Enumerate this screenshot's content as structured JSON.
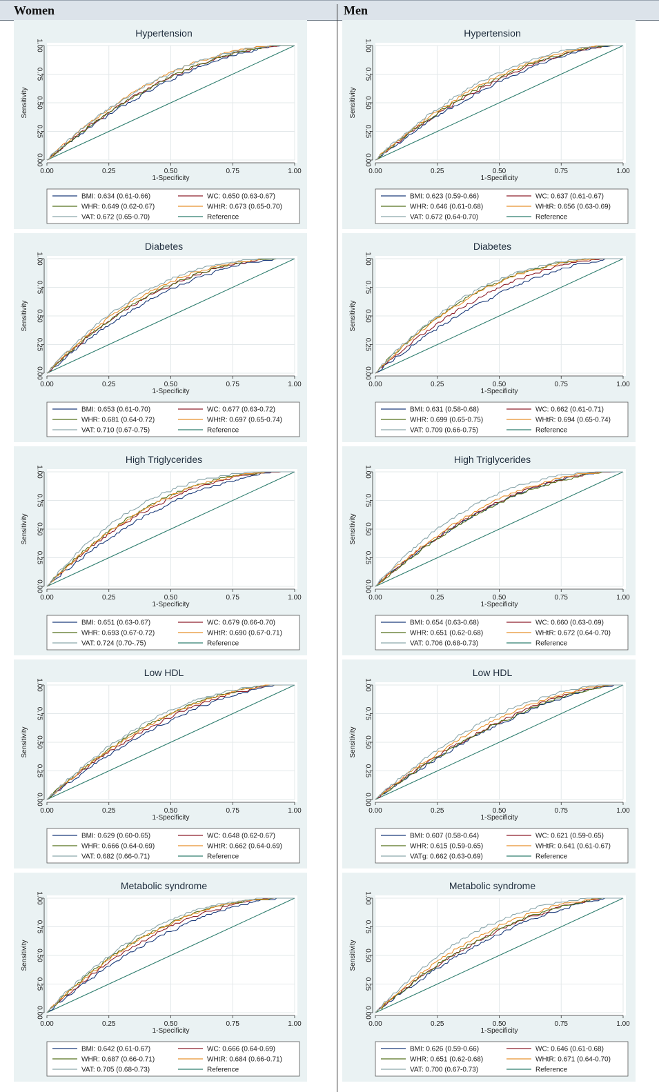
{
  "header": {
    "women": "Women",
    "men": "Men"
  },
  "colors": {
    "BMI": "#1a3a7a",
    "WC": "#8e1f2a",
    "WHR": "#55711c",
    "WHtR": "#e8902c",
    "VAT": "#8aa6ab",
    "Reference": "#2e7d6e"
  },
  "chart_data": [
    {
      "type": "line",
      "sex": "Women",
      "title": "Hypertension",
      "xlabel": "1-Specificity",
      "ylabel": "Sensitivity",
      "xlim": [
        0,
        1
      ],
      "ylim": [
        0,
        1
      ],
      "xticks": [
        "0.00",
        "0.25",
        "0.50",
        "0.75",
        "1.00"
      ],
      "yticks": [
        "0.00",
        "0.25",
        "0.50",
        "0.75",
        "1.00"
      ],
      "series": [
        {
          "key": "BMI",
          "legend": "BMI: 0.634 (0.61-0.66)",
          "auc": 0.634
        },
        {
          "key": "WC",
          "legend": "WC: 0.650 (0.63-0.67)",
          "auc": 0.65
        },
        {
          "key": "WHR",
          "legend": "WHR: 0.649 (0.62-0.67)",
          "auc": 0.649
        },
        {
          "key": "WHtR",
          "legend": "WHtR: 0.673 (0.65-0.70)",
          "auc": 0.673
        },
        {
          "key": "VAT",
          "legend": "VAT: 0.672 (0.65-0.70)",
          "auc": 0.672
        },
        {
          "key": "Reference",
          "legend": "Reference",
          "auc": 0.5
        }
      ]
    },
    {
      "type": "line",
      "sex": "Men",
      "title": "Hypertension",
      "xlabel": "1-Specificity",
      "ylabel": "Sensitivity",
      "xlim": [
        0,
        1
      ],
      "ylim": [
        0,
        1
      ],
      "xticks": [
        "0.00",
        "0.25",
        "0.50",
        "0.75",
        "1.00"
      ],
      "yticks": [
        "0.00",
        "0.25",
        "0.50",
        "0.75",
        "1.00"
      ],
      "series": [
        {
          "key": "BMI",
          "legend": "BMI: 0.623 (0.59-0.66)",
          "auc": 0.623
        },
        {
          "key": "WC",
          "legend": "WC: 0.637 (0.61-0.67)",
          "auc": 0.637
        },
        {
          "key": "WHR",
          "legend": "WHR: 0.646 (0.61-0.68)",
          "auc": 0.646
        },
        {
          "key": "WHtR",
          "legend": "WHtR: 0.656 (0.63-0.69)",
          "auc": 0.656
        },
        {
          "key": "VAT",
          "legend": "VAT: 0.672 (0.64-0.70)",
          "auc": 0.672
        },
        {
          "key": "Reference",
          "legend": "Reference",
          "auc": 0.5
        }
      ]
    },
    {
      "type": "line",
      "sex": "Women",
      "title": "Diabetes",
      "xlabel": "1-Specificity",
      "ylabel": "Sensitivity",
      "xlim": [
        0,
        1
      ],
      "ylim": [
        0,
        1
      ],
      "xticks": [
        "0.00",
        "0.25",
        "0.50",
        "0.75",
        "1.00"
      ],
      "yticks": [
        "0.00",
        "0.25",
        "0.50",
        "0.75",
        "1.00"
      ],
      "series": [
        {
          "key": "BMI",
          "legend": "BMI: 0.653 (0.61-0.70)",
          "auc": 0.653
        },
        {
          "key": "WC",
          "legend": "WC: 0.677 (0.63-0.72)",
          "auc": 0.677
        },
        {
          "key": "WHR",
          "legend": "WHR: 0.681 (0.64-0.72)",
          "auc": 0.681
        },
        {
          "key": "WHtR",
          "legend": "WHtR: 0.697 (0.65-0.74)",
          "auc": 0.697
        },
        {
          "key": "VAT",
          "legend": "VAT: 0.710 (0.67-0.75)",
          "auc": 0.71
        },
        {
          "key": "Reference",
          "legend": "Reference",
          "auc": 0.5
        }
      ]
    },
    {
      "type": "line",
      "sex": "Men",
      "title": "Diabetes",
      "xlabel": "1-Specificity",
      "ylabel": "Sensitivity",
      "xlim": [
        0,
        1
      ],
      "ylim": [
        0,
        1
      ],
      "xticks": [
        "0.00",
        "0.25",
        "0.50",
        "0.75",
        "1.00"
      ],
      "yticks": [
        "0.00",
        "0.25",
        "0.50",
        "0.75",
        "1.00"
      ],
      "series": [
        {
          "key": "BMI",
          "legend": "BMI: 0.631 (0.58-0.68)",
          "auc": 0.631
        },
        {
          "key": "WC",
          "legend": "WC: 0.662 (0.61-0.71)",
          "auc": 0.662
        },
        {
          "key": "WHR",
          "legend": "WHR: 0.699 (0.65-0.75)",
          "auc": 0.699
        },
        {
          "key": "WHtR",
          "legend": "WHtR: 0.694 (0.65-0.74)",
          "auc": 0.694
        },
        {
          "key": "VAT",
          "legend": "VAT: 0.709 (0.66-0.75)",
          "auc": 0.709
        },
        {
          "key": "Reference",
          "legend": "Reference",
          "auc": 0.5
        }
      ]
    },
    {
      "type": "line",
      "sex": "Women",
      "title": "High Triglycerides",
      "xlabel": "1-Specificity",
      "ylabel": "Sensitivity",
      "xlim": [
        0,
        1
      ],
      "ylim": [
        0,
        1
      ],
      "xticks": [
        "0.00",
        "0.25",
        "0.50",
        "0.75",
        "1.00"
      ],
      "yticks": [
        "0.00",
        "0.25",
        "0.50",
        "0.75",
        "1.00"
      ],
      "series": [
        {
          "key": "BMI",
          "legend": "BMI: 0.651 (0.63-0.67)",
          "auc": 0.651
        },
        {
          "key": "WC",
          "legend": "WC: 0.679 (0.66-0.70)",
          "auc": 0.679
        },
        {
          "key": "WHR",
          "legend": "WHR: 0.693 (0.67-0.72)",
          "auc": 0.693
        },
        {
          "key": "WHtR",
          "legend": "WHtR: 0.690 (0.67-0.71)",
          "auc": 0.69
        },
        {
          "key": "VAT",
          "legend": "VAT: 0.724 (0.70-.75)",
          "auc": 0.724
        },
        {
          "key": "Reference",
          "legend": "Reference",
          "auc": 0.5
        }
      ]
    },
    {
      "type": "line",
      "sex": "Men",
      "title": "High Triglycerides",
      "xlabel": "1-Specificity",
      "ylabel": "Sensitivity",
      "xlim": [
        0,
        1
      ],
      "ylim": [
        0,
        1
      ],
      "xticks": [
        "0.00",
        "0.25",
        "0.50",
        "0.75",
        "1.00"
      ],
      "yticks": [
        "0.00",
        "0.25",
        "0.50",
        "0.75",
        "1.00"
      ],
      "series": [
        {
          "key": "BMI",
          "legend": "BMI: 0.654 (0.63-0.68)",
          "auc": 0.654
        },
        {
          "key": "WC",
          "legend": "WC: 0.660 (0.63-0.69)",
          "auc": 0.66
        },
        {
          "key": "WHR",
          "legend": "WHR: 0.651 (0.62-0.68)",
          "auc": 0.651
        },
        {
          "key": "WHtR",
          "legend": "WHtR: 0.672 (0.64-0.70)",
          "auc": 0.672
        },
        {
          "key": "VAT",
          "legend": "VAT: 0.706 (0.68-0.73)",
          "auc": 0.706
        },
        {
          "key": "Reference",
          "legend": "Reference",
          "auc": 0.5
        }
      ]
    },
    {
      "type": "line",
      "sex": "Women",
      "title": "Low HDL",
      "xlabel": "1-Specificity",
      "ylabel": "Sensitivity",
      "xlim": [
        0,
        1
      ],
      "ylim": [
        0,
        1
      ],
      "xticks": [
        "0.00",
        "0.25",
        "0.50",
        "0.75",
        "1.00"
      ],
      "yticks": [
        "0.00",
        "0.25",
        "0.50",
        "0.75",
        "1.00"
      ],
      "series": [
        {
          "key": "BMI",
          "legend": "BMI: 0.629 (0.60-0.65)",
          "auc": 0.629
        },
        {
          "key": "WC",
          "legend": "WC: 0.648 (0.62-0.67)",
          "auc": 0.648
        },
        {
          "key": "WHR",
          "legend": "WHR: 0.666 (0.64-0.69)",
          "auc": 0.666
        },
        {
          "key": "WHtR",
          "legend": "WHtR: 0.662 (0.64-0.69)",
          "auc": 0.662
        },
        {
          "key": "VAT",
          "legend": "VAT: 0.682 (0.66-0.71)",
          "auc": 0.682
        },
        {
          "key": "Reference",
          "legend": "Reference",
          "auc": 0.5
        }
      ]
    },
    {
      "type": "line",
      "sex": "Men",
      "title": "Low HDL",
      "xlabel": "1-Specificity",
      "ylabel": "Sensitivity",
      "xlim": [
        0,
        1
      ],
      "ylim": [
        0,
        1
      ],
      "xticks": [
        "0.00",
        "0.25",
        "0.50",
        "0.75",
        "1.00"
      ],
      "yticks": [
        "0.00",
        "0.25",
        "0.50",
        "0.75",
        "1.00"
      ],
      "series": [
        {
          "key": "BMI",
          "legend": "BMI: 0.607 (0.58-0.64)",
          "auc": 0.607
        },
        {
          "key": "WC",
          "legend": "WC: 0.621 (0.59-0.65)",
          "auc": 0.621
        },
        {
          "key": "WHR",
          "legend": "WHR: 0.615 (0.59-0.65)",
          "auc": 0.615
        },
        {
          "key": "WHtR",
          "legend": "WHtR: 0.641 (0.61-0.67)",
          "auc": 0.641
        },
        {
          "key": "VAT",
          "legend": "VATg: 0.662 (0.63-0.69)",
          "auc": 0.662
        },
        {
          "key": "Reference",
          "legend": "Reference",
          "auc": 0.5
        }
      ]
    },
    {
      "type": "line",
      "sex": "Women",
      "title": "Metabolic syndrome",
      "xlabel": "1-Specificity",
      "ylabel": "Sensitivity",
      "xlim": [
        0,
        1
      ],
      "ylim": [
        0,
        1
      ],
      "xticks": [
        "0.00",
        "0.25",
        "0.50",
        "0.75",
        "1.00"
      ],
      "yticks": [
        "0.00",
        "0.25",
        "0.50",
        "0.75",
        "1.00"
      ],
      "series": [
        {
          "key": "BMI",
          "legend": "BMI: 0.642 (0.61-0.67)",
          "auc": 0.642
        },
        {
          "key": "WC",
          "legend": "WC: 0.666 (0.64-0.69)",
          "auc": 0.666
        },
        {
          "key": "WHR",
          "legend": "WHR: 0.687 (0.66-0.71)",
          "auc": 0.687
        },
        {
          "key": "WHtR",
          "legend": "WHtR: 0.684 (0.66-0.71)",
          "auc": 0.684
        },
        {
          "key": "VAT",
          "legend": "VAT: 0.705 (0.68-0.73)",
          "auc": 0.705
        },
        {
          "key": "Reference",
          "legend": "Reference",
          "auc": 0.5
        }
      ]
    },
    {
      "type": "line",
      "sex": "Men",
      "title": "Metabolic syndrome",
      "xlabel": "1-Specificity",
      "ylabel": "Sensitivity",
      "xlim": [
        0,
        1
      ],
      "ylim": [
        0,
        1
      ],
      "xticks": [
        "0.00",
        "0.25",
        "0.50",
        "0.75",
        "1.00"
      ],
      "yticks": [
        "0.00",
        "0.25",
        "0.50",
        "0.75",
        "1.00"
      ],
      "series": [
        {
          "key": "BMI",
          "legend": "BMI: 0.626 (0.59-0.66)",
          "auc": 0.626
        },
        {
          "key": "WC",
          "legend": "WC: 0.646 (0.61-0.68)",
          "auc": 0.646
        },
        {
          "key": "WHR",
          "legend": "WHR: 0.651 (0.62-0.68)",
          "auc": 0.651
        },
        {
          "key": "WHtR",
          "legend": "WHtR: 0.671 (0.64-0.70)",
          "auc": 0.671
        },
        {
          "key": "VAT",
          "legend": "VAT: 0.700 (0.67-0.73)",
          "auc": 0.7
        },
        {
          "key": "Reference",
          "legend": "Reference",
          "auc": 0.5
        }
      ]
    }
  ]
}
